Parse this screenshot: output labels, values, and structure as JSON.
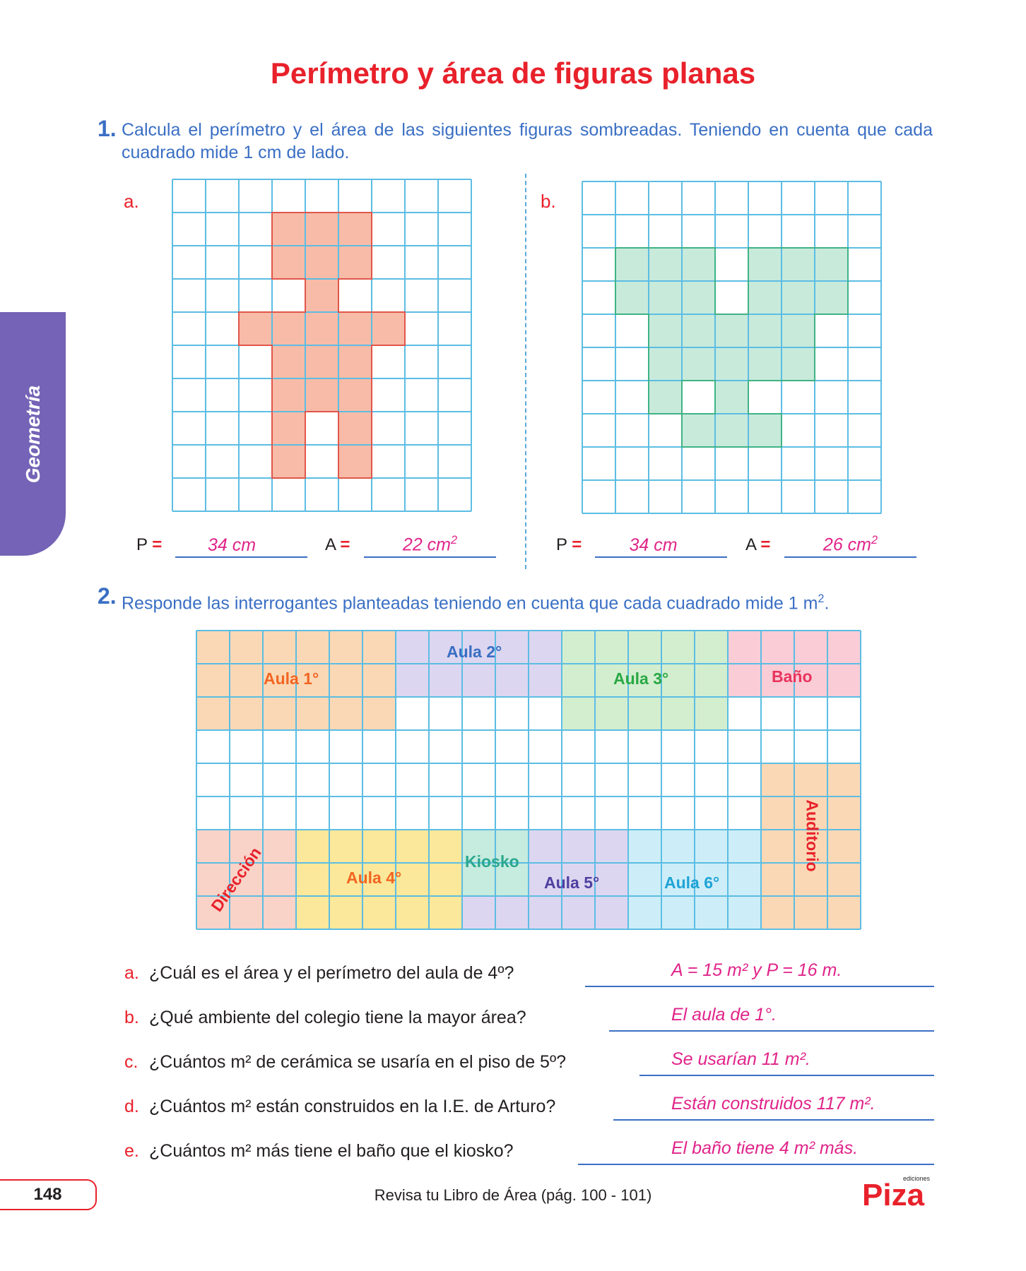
{
  "title": "Perímetro y área de figuras planas",
  "side_tab": "Geometría",
  "q1": {
    "number": "1.",
    "text": "Calcula el perímetro y el área de las siguientes figuras sombreadas. Teniendo en cuenta que cada cuadrado mide 1 cm de lado.",
    "a": {
      "label": "a.",
      "p_label": "P",
      "a_label": "A",
      "eq": "=",
      "p_value": "34 cm",
      "a_value": "22 cm",
      "a_sup": "2"
    },
    "b": {
      "label": "b.",
      "p_label": "P",
      "a_label": "A",
      "eq": "=",
      "p_value": "34 cm",
      "a_value": "26 cm",
      "a_sup": "2"
    }
  },
  "q2": {
    "number": "2.",
    "text": "Responde las interrogantes planteadas teniendo en cuenta que cada cuadrado mide 1 m",
    "text_sup": "2",
    "text_end": ".",
    "rooms": {
      "aula1": "Aula 1°",
      "aula2": "Aula 2°",
      "aula3": "Aula 3°",
      "bano": "Baño",
      "auditorio": "Auditorio",
      "direccion": "Dirección",
      "aula4": "Aula 4°",
      "kiosko": "Kiosko",
      "aula5": "Aula 5°",
      "aula6": "Aula 6°"
    },
    "questions": [
      {
        "letter": "a.",
        "text": "¿Cuál es el área y el perímetro del aula de 4º?",
        "answer": "A = 15 m² y P = 16 m."
      },
      {
        "letter": "b.",
        "text": "¿Qué ambiente del colegio tiene la mayor área?",
        "answer": "El aula de 1°."
      },
      {
        "letter": "c.",
        "text": "¿Cuántos m² de cerámica se usaría en el piso de 5º?",
        "answer": "Se usarían 11 m²."
      },
      {
        "letter": "d.",
        "text": "¿Cuántos m² están construidos en la I.E. de Arturo?",
        "answer": "Están construidos 117 m²."
      },
      {
        "letter": "e.",
        "text": "¿Cuántos m² más tiene el baño que el kiosko?",
        "answer": "El baño tiene 4 m² más."
      }
    ]
  },
  "footer": {
    "page": "148",
    "text": "Revisa tu Libro de Área (pág. 100 - 101)",
    "logo": "Piza",
    "logo_small": "ediciones"
  },
  "colors": {
    "grid": "#5cbde3",
    "shape_a": "#f7bba7",
    "shape_a_border": "#e0564a",
    "shape_b": "#c8eadb",
    "shape_b_border": "#3fb386",
    "aula1": "#fbd8b5",
    "aula2": "#ddd6f0",
    "aula3": "#d3eecf",
    "bano": "#f9ccd6",
    "auditorio": "#fbd8b5",
    "direccion": "#f9d3c7",
    "aula4": "#fbe89a",
    "kiosko": "#c6ebdf",
    "aula5": "#ddd6f0",
    "aula6": "#cdeef8"
  }
}
